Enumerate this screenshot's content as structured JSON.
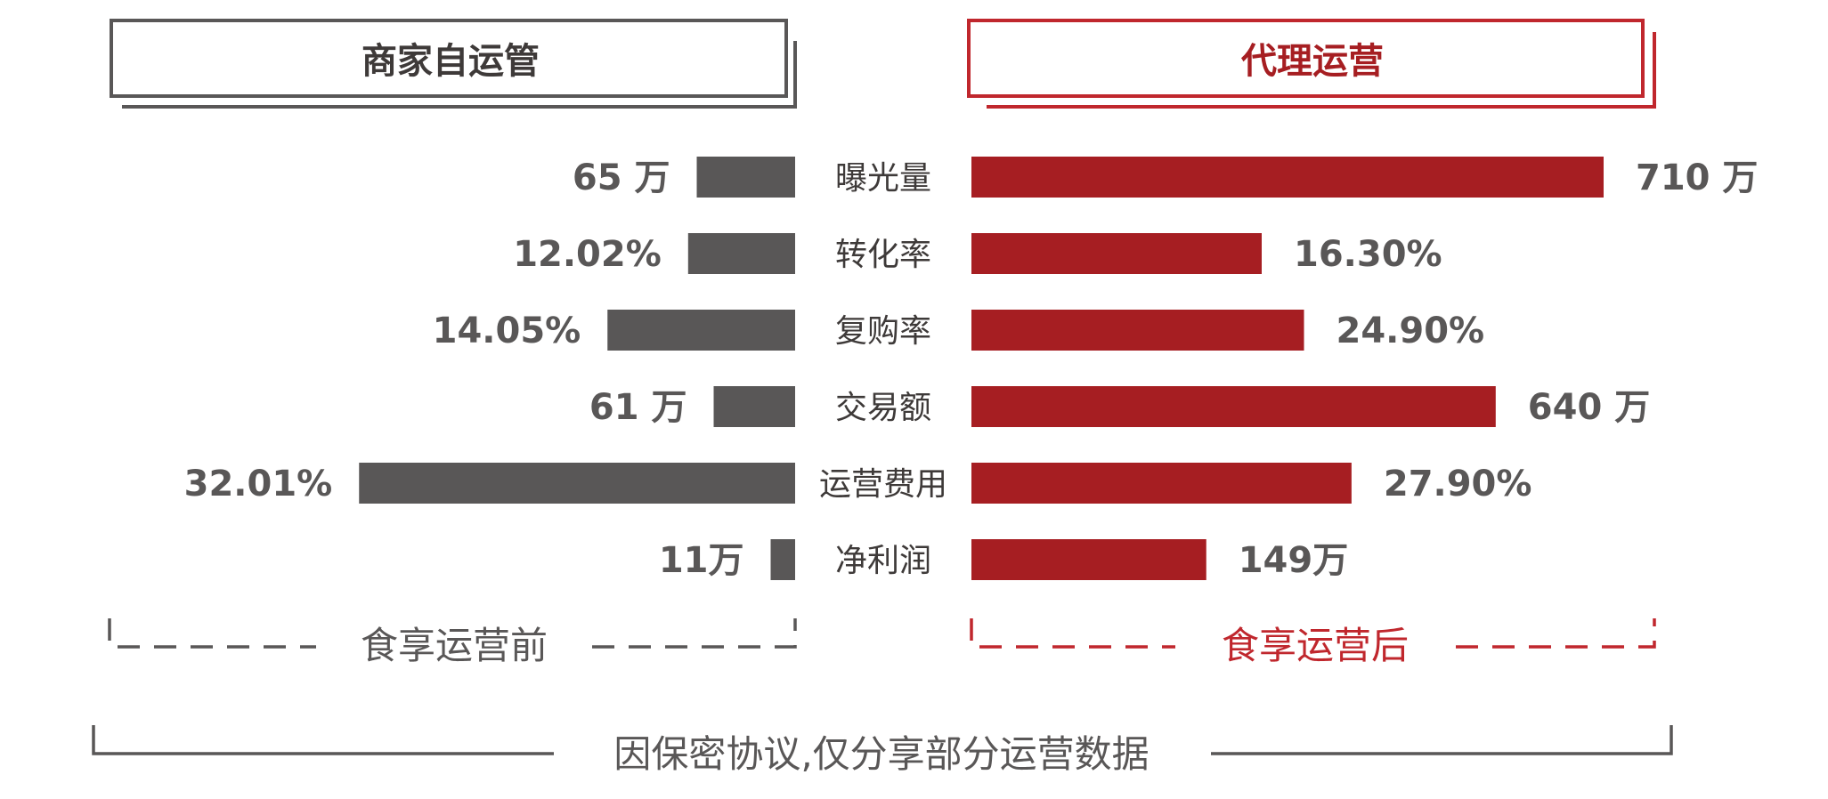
{
  "colors": {
    "left": "#595757",
    "right": "#a61e22",
    "text_dark": "#3e3a39",
    "header_left_border": "#595757",
    "header_right_border": "#c0272d"
  },
  "chart_data": {
    "type": "bar",
    "orientation": "horizontal-butterfly",
    "left_header": "商家自运管",
    "right_header": "代理运营",
    "categories": [
      "曝光量",
      "转化率",
      "复购率",
      "交易额",
      "运营费用",
      "净利润"
    ],
    "series": [
      {
        "name": "商家自运管",
        "side": "left",
        "values": [
          65,
          12.02,
          14.05,
          61,
          32.01,
          11
        ],
        "labels": [
          "65 万",
          "12.02%",
          "14.05%",
          "61 万",
          "32.01%",
          "11万"
        ]
      },
      {
        "name": "代理运营",
        "side": "right",
        "values": [
          710,
          16.3,
          24.9,
          640,
          27.9,
          149
        ],
        "labels": [
          "710 万",
          "16.30%",
          "24.90%",
          "640 万",
          "27.90%",
          "149万"
        ]
      }
    ],
    "left_bracket_label": "食享运营前",
    "right_bracket_label": "食享运营后",
    "footnote": "因保密协议,仅分享部分运营数据"
  }
}
